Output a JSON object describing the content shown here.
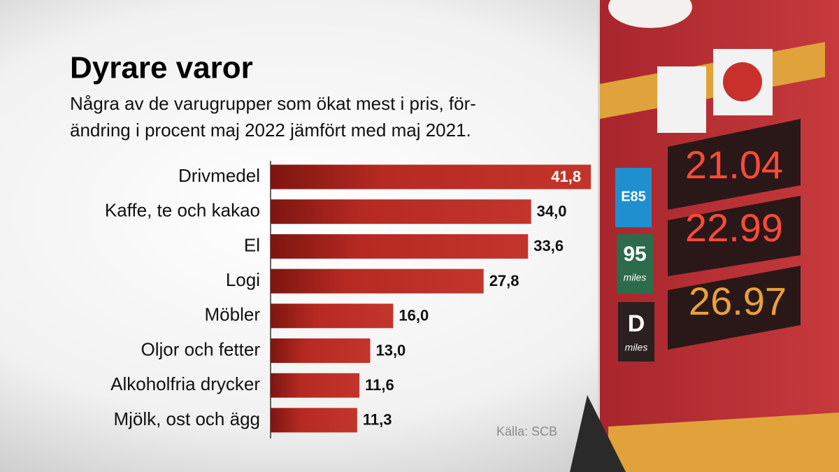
{
  "chart_data": {
    "type": "hbar",
    "title": "Dyrare varor",
    "subtitle": [
      "Några av de varugrupper som ökat mest i pris, för-",
      "ändring i procent maj 2022 jämfört med maj 2021."
    ],
    "categories": [
      "Drivmedel",
      "Kaffe, te och kakao",
      "El",
      "Logi",
      "Möbler",
      "Oljor och fetter",
      "Alkoholfria drycker",
      "Mjölk, ost och ägg"
    ],
    "values": [
      41.8,
      34.0,
      33.6,
      27.8,
      16.0,
      13.0,
      11.6,
      11.3
    ],
    "value_labels": [
      "41,8",
      "34,0",
      "33,6",
      "27,8",
      "16,0",
      "13,0",
      "11,6",
      "11,3"
    ],
    "color": "#b52a22",
    "source": "Källa: SCB"
  },
  "background_photo": {
    "signs": [
      "E85",
      "95",
      "miles",
      "D",
      "miles"
    ],
    "prices": [
      "21.04",
      "22.99",
      "26.97"
    ]
  }
}
